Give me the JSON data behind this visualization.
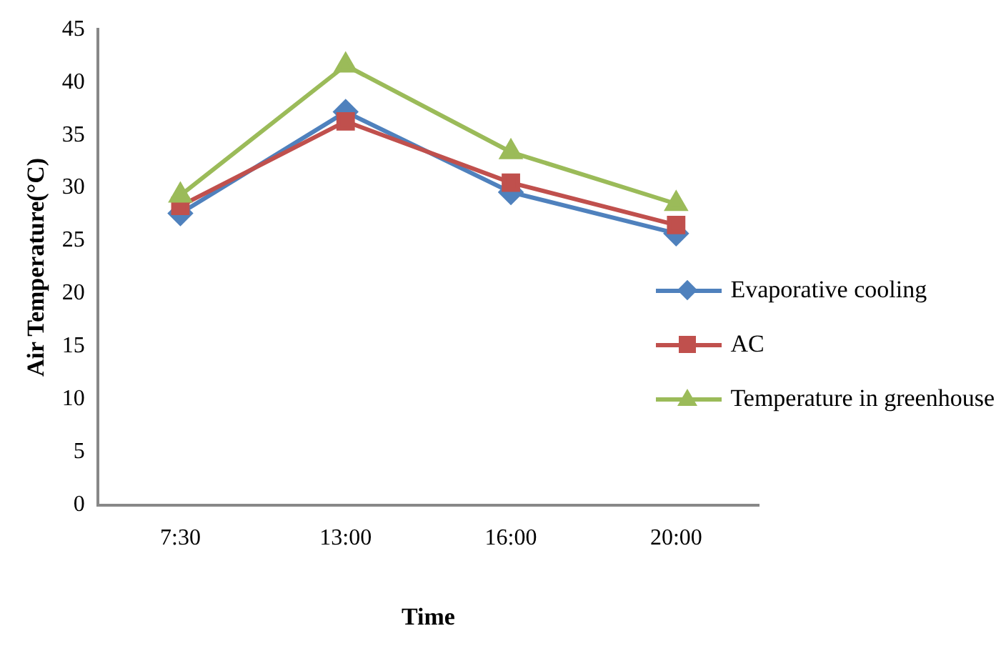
{
  "chart_data": {
    "type": "line",
    "xlabel": "Time",
    "ylabel": "Air Temperature(°C)",
    "categories": [
      "7:30",
      "13:00",
      "16:00",
      "20:00"
    ],
    "series": [
      {
        "name": "Evaporative cooling",
        "color": "#4f81bd",
        "marker": "diamond",
        "values": [
          27.6,
          37.2,
          29.6,
          25.7
        ]
      },
      {
        "name": "AC",
        "color": "#c0504d",
        "marker": "square",
        "values": [
          28.3,
          36.3,
          30.5,
          26.5
        ]
      },
      {
        "name": "Temperature in greenhouse",
        "color": "#9bbb59",
        "marker": "triangle",
        "values": [
          29.3,
          41.6,
          33.4,
          28.5
        ]
      }
    ],
    "ylim": [
      0,
      45
    ],
    "yticks": [
      0,
      5,
      10,
      15,
      20,
      25,
      30,
      35,
      40,
      45
    ],
    "grid": false,
    "legend": "right"
  }
}
